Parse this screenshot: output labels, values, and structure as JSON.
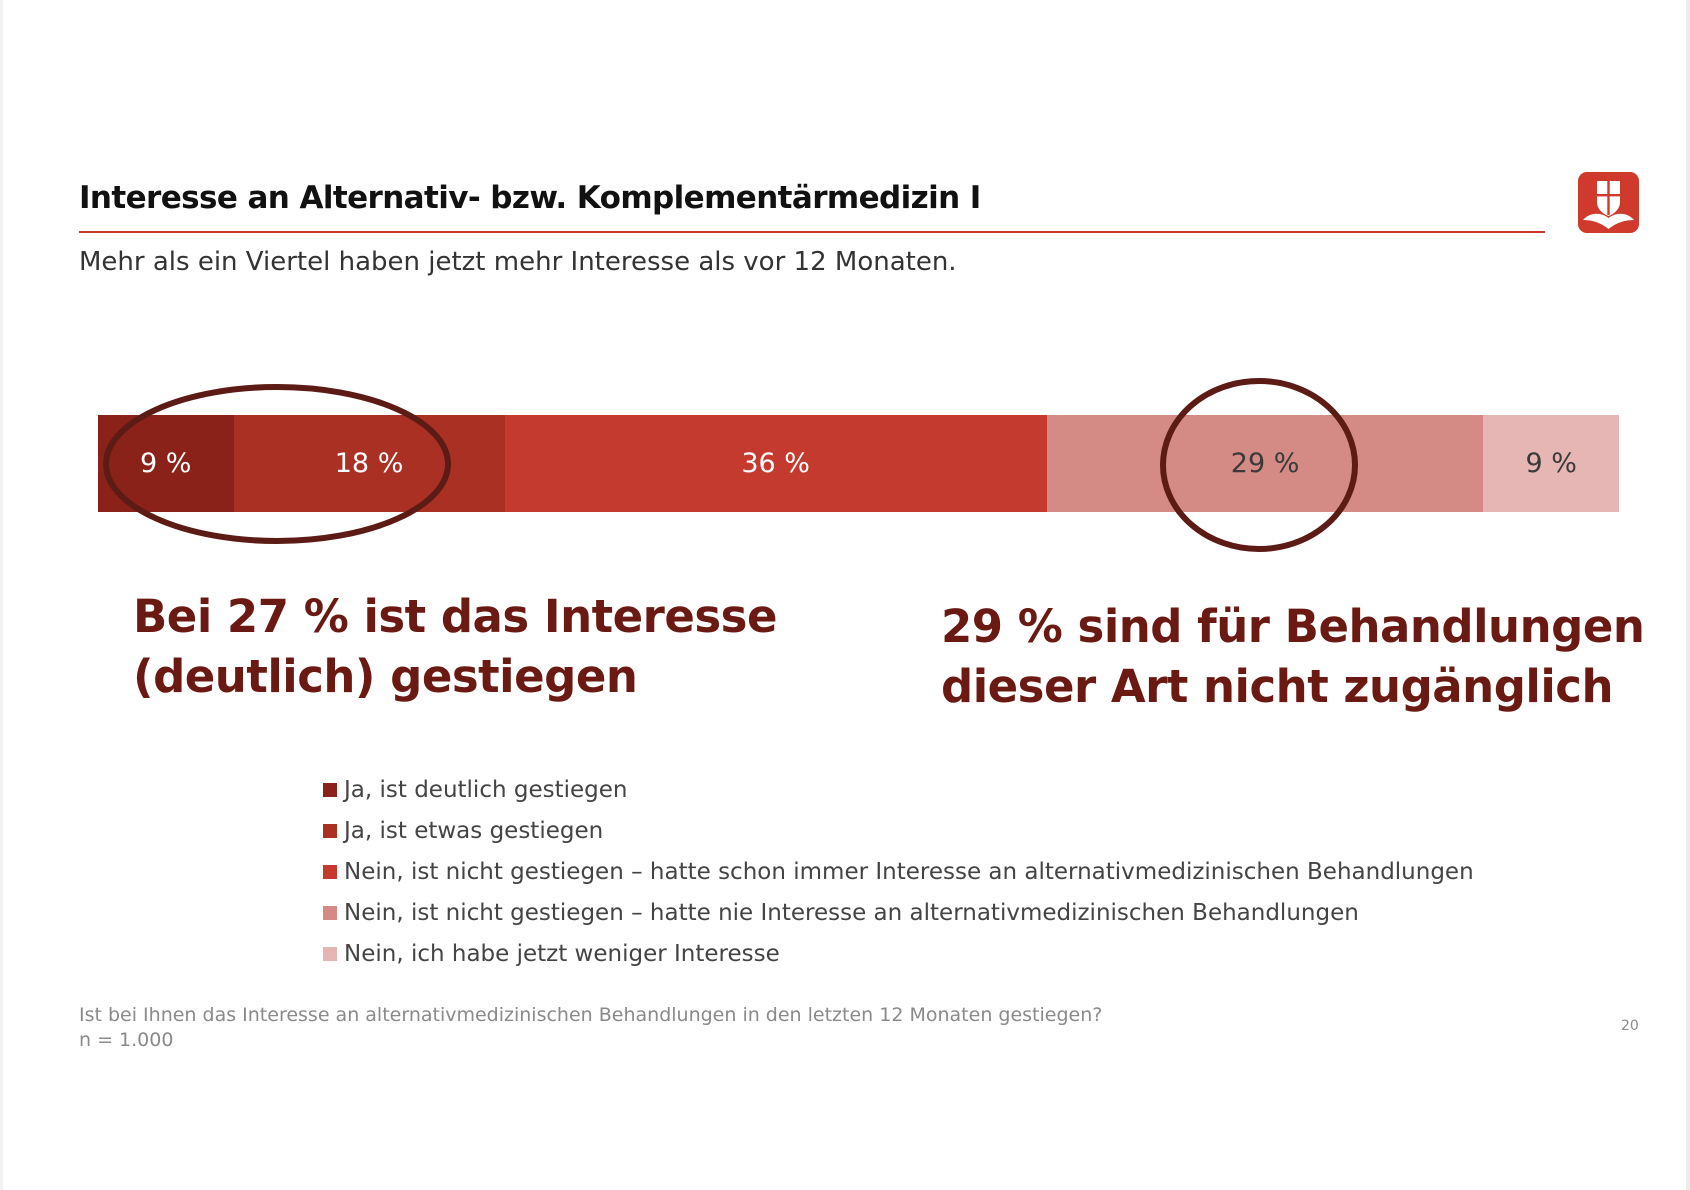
{
  "header": {
    "title": "Interesse an Alternativ- bzw. Komplementärmedizin I",
    "subtitle": "Mehr als ein Viertel haben jetzt mehr Interesse als vor 12 Monaten."
  },
  "logo": {
    "icon": "shield-flower-icon",
    "color": "#d03a2c"
  },
  "chart_data": {
    "type": "bar",
    "orientation": "horizontal-stacked-100",
    "categories": [
      ""
    ],
    "series": [
      {
        "name": "Ja, ist deutlich gestiegen",
        "values": [
          9
        ],
        "label": "9 %",
        "color": "#8b2219",
        "text_color": "#ffffff"
      },
      {
        "name": "Ja, ist etwas gestiegen",
        "values": [
          18
        ],
        "label": "18 %",
        "color": "#ab3024",
        "text_color": "#ffffff"
      },
      {
        "name": "Nein, ist nicht gestiegen – hatte schon immer Interesse an alternativmedizinischen Behandlungen",
        "values": [
          36
        ],
        "label": "36 %",
        "color": "#c53a2e",
        "text_color": "#ffffff"
      },
      {
        "name": "Nein, ist nicht gestiegen – hatte nie Interesse an alternativmedizinischen Behandlungen",
        "values": [
          29
        ],
        "label": "29 %",
        "color": "#d48a85",
        "text_color": "#3a3a3a"
      },
      {
        "name": "Nein, ich habe jetzt weniger Interesse",
        "values": [
          9
        ],
        "label": "9 %",
        "color": "#e5b6b3",
        "text_color": "#3a3a3a"
      }
    ],
    "legend_position": "bottom",
    "grid": false
  },
  "annotations": {
    "left": {
      "line1": "Bei 27 % ist das Interesse",
      "line2": "(deutlich) gestiegen"
    },
    "right": {
      "line1": "29 % sind für Behandlungen",
      "line2": "dieser Art nicht zugänglich"
    },
    "circle_color": "#5c1b14"
  },
  "footer": {
    "question": "Ist bei Ihnen das Interesse an alternativmedizinischen Behandlungen in den letzten 12 Monaten gestiegen?",
    "sample": "n = 1.000",
    "page_number": "20"
  }
}
